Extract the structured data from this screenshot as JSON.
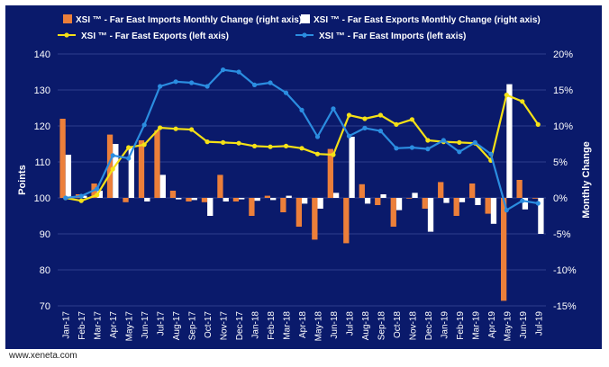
{
  "footer": {
    "url": "www.xeneta.com"
  },
  "colors": {
    "background": "#0a1a6b",
    "bar_imports": "#ec7f3a",
    "bar_exports": "#ffffff",
    "line_exports": "#f5e116",
    "line_imports": "#2b8de0",
    "text": "#ffffff",
    "grid": "#2f3f8c"
  },
  "chart_data": {
    "type": "bar+line",
    "categories": [
      "Jan-17",
      "Feb-17",
      "Mar-17",
      "Apr-17",
      "May-17",
      "Jun-17",
      "Jul-17",
      "Aug-17",
      "Sep-17",
      "Oct-17",
      "Nov-17",
      "Dec-17",
      "Jan-18",
      "Feb-18",
      "Mar-18",
      "Apr-18",
      "May-18",
      "Jun-18",
      "Jul-18",
      "Aug-18",
      "Sep-18",
      "Oct-18",
      "Nov-18",
      "Dec-18",
      "Jan-19",
      "Feb-19",
      "Mar-19",
      "Apr-19",
      "May-19",
      "Jun-19",
      "Jul-19"
    ],
    "series": [
      {
        "name": "XSI ™ - Far East Imports Monthly Change (right axis)",
        "type": "bar",
        "axis": "right",
        "values": [
          11.0,
          0.5,
          2.0,
          8.8,
          -0.6,
          8.0,
          9.4,
          1.0,
          -0.5,
          -0.6,
          3.2,
          -0.5,
          -2.5,
          0.3,
          -2.0,
          -4.0,
          -5.8,
          6.8,
          -6.3,
          1.9,
          -1.0,
          -4.0,
          0.0,
          -1.5,
          2.2,
          -2.5,
          2.0,
          -2.2,
          -14.3,
          2.5,
          0.0
        ]
      },
      {
        "name": "XSI ™ - Far East Exports Monthly Change (right axis)",
        "type": "bar",
        "axis": "right",
        "values": [
          6.0,
          0.3,
          1.0,
          7.5,
          7.0,
          -0.5,
          3.2,
          -0.2,
          -0.3,
          -2.5,
          -0.5,
          -0.2,
          -0.4,
          -0.3,
          0.3,
          -0.8,
          -1.5,
          0.7,
          8.5,
          -0.8,
          0.5,
          -1.7,
          0.7,
          -4.7,
          -0.7,
          -0.6,
          -1.0,
          -3.6,
          15.8,
          -1.6,
          -5.0
        ]
      },
      {
        "name": "XSI ™ - Far East Exports (left axis)",
        "type": "line",
        "axis": "left",
        "values": [
          100,
          99.2,
          100.8,
          108,
          114,
          114.8,
          119.5,
          119.2,
          119,
          115.6,
          115.4,
          115.2,
          114.4,
          114.2,
          114.4,
          113.8,
          112.2,
          112,
          123,
          122,
          123,
          120.4,
          121.8,
          116,
          115.6,
          115.4,
          115.2,
          110.4,
          128.6,
          126.8,
          120.4
        ]
      },
      {
        "name": "XSI ™ - Far East Imports (left axis)",
        "type": "line",
        "axis": "left",
        "values": [
          100,
          100.5,
          102.5,
          111.8,
          111,
          120.3,
          131,
          132.3,
          132,
          131,
          135.6,
          135,
          131.4,
          132,
          129.2,
          124.4,
          117,
          124.8,
          117.2,
          119.4,
          118.6,
          113.8,
          114,
          113.6,
          116,
          112.8,
          115.4,
          112.2,
          96.6,
          99.2,
          98.5
        ]
      }
    ],
    "ylabel": "Points",
    "y2label": "Monthly Change",
    "ylim": [
      70,
      140
    ],
    "yticks": [
      "70",
      "80",
      "90",
      "100",
      "110",
      "120",
      "130",
      "140"
    ],
    "y2lim": [
      -15,
      20
    ],
    "y2ticks": [
      "-15%",
      "-10%",
      "-5%",
      "0%",
      "5%",
      "10%",
      "15%",
      "20%"
    ],
    "grid": true,
    "legend": "top"
  }
}
